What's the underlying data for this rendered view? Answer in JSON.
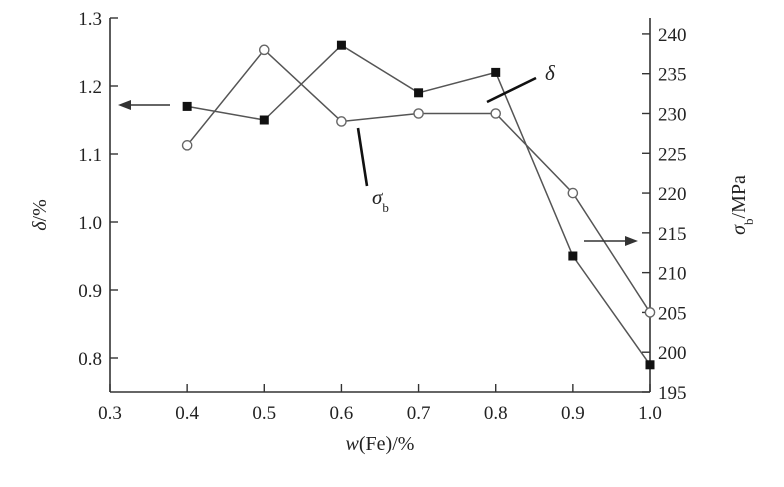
{
  "chart_data": {
    "type": "line",
    "x_label": {
      "italic": "w",
      "rest": "(Fe)/%"
    },
    "y_left_label": {
      "italic": "δ",
      "rest": "/%"
    },
    "y_right_label": {
      "italic": "σ",
      "sub": "b",
      "rest": "/MPa"
    },
    "x_ticks": [
      "0.3",
      "0.4",
      "0.5",
      "0.6",
      "0.7",
      "0.8",
      "0.9",
      "1.0"
    ],
    "y_left_ticks": [
      "0.8",
      "0.9",
      "1.0",
      "1.1",
      "1.2",
      "1.3"
    ],
    "y_right_ticks": [
      "195",
      "200",
      "205",
      "210",
      "215",
      "220",
      "225",
      "230",
      "235",
      "240"
    ],
    "xlim": [
      0.3,
      1.0
    ],
    "y_left_lim": [
      0.75,
      1.3
    ],
    "y_right_lim": [
      195,
      242
    ],
    "series": [
      {
        "name": "δ",
        "axis": "left",
        "marker": "filled-square",
        "x": [
          0.4,
          0.5,
          0.6,
          0.7,
          0.8,
          0.9,
          1.0
        ],
        "y": [
          1.17,
          1.15,
          1.26,
          1.19,
          1.22,
          0.95,
          0.79
        ]
      },
      {
        "name": "σb",
        "axis": "right",
        "marker": "open-circle",
        "x": [
          0.4,
          0.5,
          0.6,
          0.7,
          0.8,
          0.9,
          1.0
        ],
        "y": [
          226,
          238,
          229,
          230,
          230,
          220,
          205
        ]
      }
    ],
    "annotations": {
      "delta": {
        "italic": "δ"
      },
      "sigma": {
        "italic": "σ",
        "sub": "b"
      }
    },
    "legend": "none",
    "grid": false
  }
}
